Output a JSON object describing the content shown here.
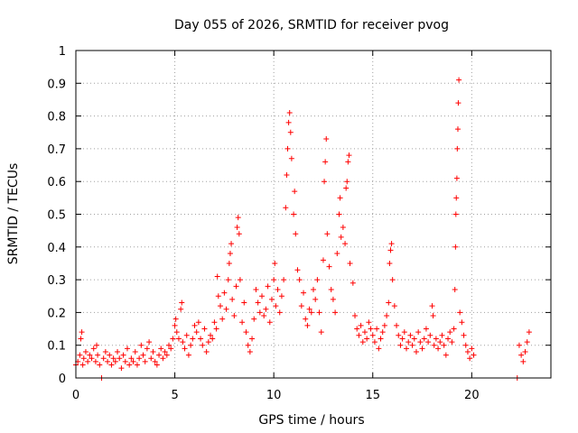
{
  "chart_data": {
    "type": "scatter",
    "title": "Day 055 of 2026, SRMTID for receiver pvog",
    "xlabel": "GPS time / hours",
    "ylabel": "SRMTID / TECUs",
    "xlim": [
      0,
      24
    ],
    "ylim": [
      0,
      1
    ],
    "grid": true,
    "marker": "+",
    "color": "#ff0000",
    "x_ticks": [
      0,
      5,
      10,
      15,
      20
    ],
    "x_tick_labels": [
      "0",
      "5",
      "10",
      "15",
      "20"
    ],
    "y_ticks": [
      0,
      0.1,
      0.2,
      0.3,
      0.4,
      0.5,
      0.6,
      0.7,
      0.8,
      0.9,
      1
    ],
    "y_tick_labels": [
      "0",
      "0.1",
      "0.2",
      "0.3",
      "0.4",
      "0.5",
      "0.6",
      "0.7",
      "0.8",
      "0.9",
      "1"
    ],
    "series": [
      {
        "name": "SRMTID",
        "points": [
          [
            0.0,
            0.04
          ],
          [
            0.1,
            0.05
          ],
          [
            0.2,
            0.07
          ],
          [
            0.25,
            0.12
          ],
          [
            0.3,
            0.14
          ],
          [
            0.35,
            0.04
          ],
          [
            0.4,
            0.06
          ],
          [
            0.5,
            0.08
          ],
          [
            0.6,
            0.05
          ],
          [
            0.7,
            0.07
          ],
          [
            0.8,
            0.06
          ],
          [
            0.9,
            0.09
          ],
          [
            1.0,
            0.05
          ],
          [
            1.05,
            0.1
          ],
          [
            1.1,
            0.07
          ],
          [
            1.2,
            0.04
          ],
          [
            1.3,
            0.0
          ],
          [
            1.4,
            0.06
          ],
          [
            1.5,
            0.08
          ],
          [
            1.6,
            0.05
          ],
          [
            1.7,
            0.07
          ],
          [
            1.8,
            0.04
          ],
          [
            1.9,
            0.06
          ],
          [
            2.0,
            0.05
          ],
          [
            2.1,
            0.08
          ],
          [
            2.2,
            0.06
          ],
          [
            2.3,
            0.03
          ],
          [
            2.4,
            0.07
          ],
          [
            2.5,
            0.05
          ],
          [
            2.6,
            0.09
          ],
          [
            2.7,
            0.04
          ],
          [
            2.8,
            0.06
          ],
          [
            2.9,
            0.05
          ],
          [
            3.0,
            0.08
          ],
          [
            3.1,
            0.04
          ],
          [
            3.2,
            0.06
          ],
          [
            3.3,
            0.1
          ],
          [
            3.4,
            0.07
          ],
          [
            3.5,
            0.05
          ],
          [
            3.6,
            0.09
          ],
          [
            3.7,
            0.11
          ],
          [
            3.8,
            0.06
          ],
          [
            3.9,
            0.08
          ],
          [
            4.0,
            0.05
          ],
          [
            4.1,
            0.04
          ],
          [
            4.2,
            0.07
          ],
          [
            4.3,
            0.09
          ],
          [
            4.4,
            0.06
          ],
          [
            4.5,
            0.08
          ],
          [
            4.6,
            0.07
          ],
          [
            4.7,
            0.1
          ],
          [
            4.8,
            0.09
          ],
          [
            4.9,
            0.12
          ],
          [
            5.0,
            0.16
          ],
          [
            5.05,
            0.18
          ],
          [
            5.1,
            0.14
          ],
          [
            5.2,
            0.12
          ],
          [
            5.3,
            0.21
          ],
          [
            5.35,
            0.23
          ],
          [
            5.4,
            0.11
          ],
          [
            5.5,
            0.09
          ],
          [
            5.6,
            0.13
          ],
          [
            5.7,
            0.07
          ],
          [
            5.8,
            0.1
          ],
          [
            5.9,
            0.12
          ],
          [
            6.0,
            0.16
          ],
          [
            6.1,
            0.14
          ],
          [
            6.2,
            0.17
          ],
          [
            6.3,
            0.12
          ],
          [
            6.4,
            0.1
          ],
          [
            6.5,
            0.15
          ],
          [
            6.6,
            0.08
          ],
          [
            6.7,
            0.11
          ],
          [
            6.8,
            0.13
          ],
          [
            6.9,
            0.12
          ],
          [
            7.0,
            0.17
          ],
          [
            7.1,
            0.15
          ],
          [
            7.15,
            0.31
          ],
          [
            7.2,
            0.25
          ],
          [
            7.3,
            0.22
          ],
          [
            7.4,
            0.18
          ],
          [
            7.5,
            0.26
          ],
          [
            7.6,
            0.21
          ],
          [
            7.7,
            0.3
          ],
          [
            7.75,
            0.35
          ],
          [
            7.8,
            0.38
          ],
          [
            7.85,
            0.41
          ],
          [
            7.9,
            0.24
          ],
          [
            8.0,
            0.19
          ],
          [
            8.1,
            0.28
          ],
          [
            8.15,
            0.46
          ],
          [
            8.2,
            0.49
          ],
          [
            8.25,
            0.44
          ],
          [
            8.3,
            0.3
          ],
          [
            8.4,
            0.17
          ],
          [
            8.5,
            0.23
          ],
          [
            8.6,
            0.14
          ],
          [
            8.7,
            0.1
          ],
          [
            8.8,
            0.08
          ],
          [
            8.9,
            0.12
          ],
          [
            9.0,
            0.18
          ],
          [
            9.1,
            0.27
          ],
          [
            9.2,
            0.23
          ],
          [
            9.3,
            0.2
          ],
          [
            9.4,
            0.25
          ],
          [
            9.5,
            0.19
          ],
          [
            9.6,
            0.21
          ],
          [
            9.7,
            0.28
          ],
          [
            9.8,
            0.17
          ],
          [
            9.9,
            0.24
          ],
          [
            10.0,
            0.3
          ],
          [
            10.05,
            0.35
          ],
          [
            10.1,
            0.22
          ],
          [
            10.2,
            0.27
          ],
          [
            10.3,
            0.2
          ],
          [
            10.4,
            0.25
          ],
          [
            10.5,
            0.3
          ],
          [
            10.6,
            0.52
          ],
          [
            10.65,
            0.62
          ],
          [
            10.7,
            0.7
          ],
          [
            10.75,
            0.78
          ],
          [
            10.8,
            0.81
          ],
          [
            10.85,
            0.75
          ],
          [
            10.9,
            0.67
          ],
          [
            11.0,
            0.5
          ],
          [
            11.05,
            0.57
          ],
          [
            11.1,
            0.44
          ],
          [
            11.2,
            0.33
          ],
          [
            11.3,
            0.3
          ],
          [
            11.4,
            0.22
          ],
          [
            11.5,
            0.26
          ],
          [
            11.6,
            0.18
          ],
          [
            11.7,
            0.16
          ],
          [
            11.8,
            0.21
          ],
          [
            11.9,
            0.2
          ],
          [
            12.0,
            0.27
          ],
          [
            12.1,
            0.24
          ],
          [
            12.2,
            0.3
          ],
          [
            12.3,
            0.2
          ],
          [
            12.4,
            0.14
          ],
          [
            12.5,
            0.36
          ],
          [
            12.55,
            0.6
          ],
          [
            12.6,
            0.66
          ],
          [
            12.65,
            0.73
          ],
          [
            12.7,
            0.44
          ],
          [
            12.8,
            0.34
          ],
          [
            12.9,
            0.27
          ],
          [
            13.0,
            0.24
          ],
          [
            13.1,
            0.2
          ],
          [
            13.2,
            0.38
          ],
          [
            13.3,
            0.5
          ],
          [
            13.35,
            0.55
          ],
          [
            13.4,
            0.43
          ],
          [
            13.5,
            0.46
          ],
          [
            13.6,
            0.41
          ],
          [
            13.65,
            0.58
          ],
          [
            13.7,
            0.6
          ],
          [
            13.75,
            0.66
          ],
          [
            13.8,
            0.68
          ],
          [
            13.85,
            0.35
          ],
          [
            14.0,
            0.29
          ],
          [
            14.1,
            0.19
          ],
          [
            14.2,
            0.15
          ],
          [
            14.3,
            0.13
          ],
          [
            14.4,
            0.16
          ],
          [
            14.5,
            0.11
          ],
          [
            14.6,
            0.14
          ],
          [
            14.7,
            0.12
          ],
          [
            14.8,
            0.17
          ],
          [
            14.9,
            0.15
          ],
          [
            15.0,
            0.13
          ],
          [
            15.1,
            0.11
          ],
          [
            15.2,
            0.15
          ],
          [
            15.3,
            0.09
          ],
          [
            15.4,
            0.12
          ],
          [
            15.5,
            0.14
          ],
          [
            15.6,
            0.16
          ],
          [
            15.7,
            0.19
          ],
          [
            15.8,
            0.23
          ],
          [
            15.85,
            0.35
          ],
          [
            15.9,
            0.39
          ],
          [
            15.95,
            0.41
          ],
          [
            16.0,
            0.3
          ],
          [
            16.1,
            0.22
          ],
          [
            16.2,
            0.16
          ],
          [
            16.3,
            0.13
          ],
          [
            16.4,
            0.1
          ],
          [
            16.5,
            0.12
          ],
          [
            16.6,
            0.14
          ],
          [
            16.7,
            0.09
          ],
          [
            16.8,
            0.11
          ],
          [
            16.9,
            0.13
          ],
          [
            17.0,
            0.1
          ],
          [
            17.1,
            0.12
          ],
          [
            17.2,
            0.08
          ],
          [
            17.3,
            0.14
          ],
          [
            17.4,
            0.11
          ],
          [
            17.5,
            0.09
          ],
          [
            17.6,
            0.12
          ],
          [
            17.7,
            0.15
          ],
          [
            17.8,
            0.11
          ],
          [
            17.9,
            0.13
          ],
          [
            18.0,
            0.22
          ],
          [
            18.05,
            0.19
          ],
          [
            18.1,
            0.1
          ],
          [
            18.2,
            0.12
          ],
          [
            18.3,
            0.09
          ],
          [
            18.4,
            0.11
          ],
          [
            18.5,
            0.13
          ],
          [
            18.6,
            0.1
          ],
          [
            18.7,
            0.07
          ],
          [
            18.8,
            0.12
          ],
          [
            18.9,
            0.14
          ],
          [
            19.0,
            0.11
          ],
          [
            19.1,
            0.15
          ],
          [
            19.15,
            0.27
          ],
          [
            19.18,
            0.4
          ],
          [
            19.2,
            0.5
          ],
          [
            19.22,
            0.55
          ],
          [
            19.25,
            0.61
          ],
          [
            19.27,
            0.7
          ],
          [
            19.3,
            0.76
          ],
          [
            19.32,
            0.84
          ],
          [
            19.35,
            0.91
          ],
          [
            19.4,
            0.2
          ],
          [
            19.5,
            0.17
          ],
          [
            19.6,
            0.13
          ],
          [
            19.7,
            0.1
          ],
          [
            19.8,
            0.08
          ],
          [
            19.9,
            0.06
          ],
          [
            20.0,
            0.09
          ],
          [
            20.1,
            0.07
          ],
          [
            22.3,
            0.0
          ],
          [
            22.4,
            0.1
          ],
          [
            22.5,
            0.07
          ],
          [
            22.6,
            0.05
          ],
          [
            22.7,
            0.08
          ],
          [
            22.8,
            0.11
          ],
          [
            22.9,
            0.14
          ]
        ]
      }
    ]
  }
}
